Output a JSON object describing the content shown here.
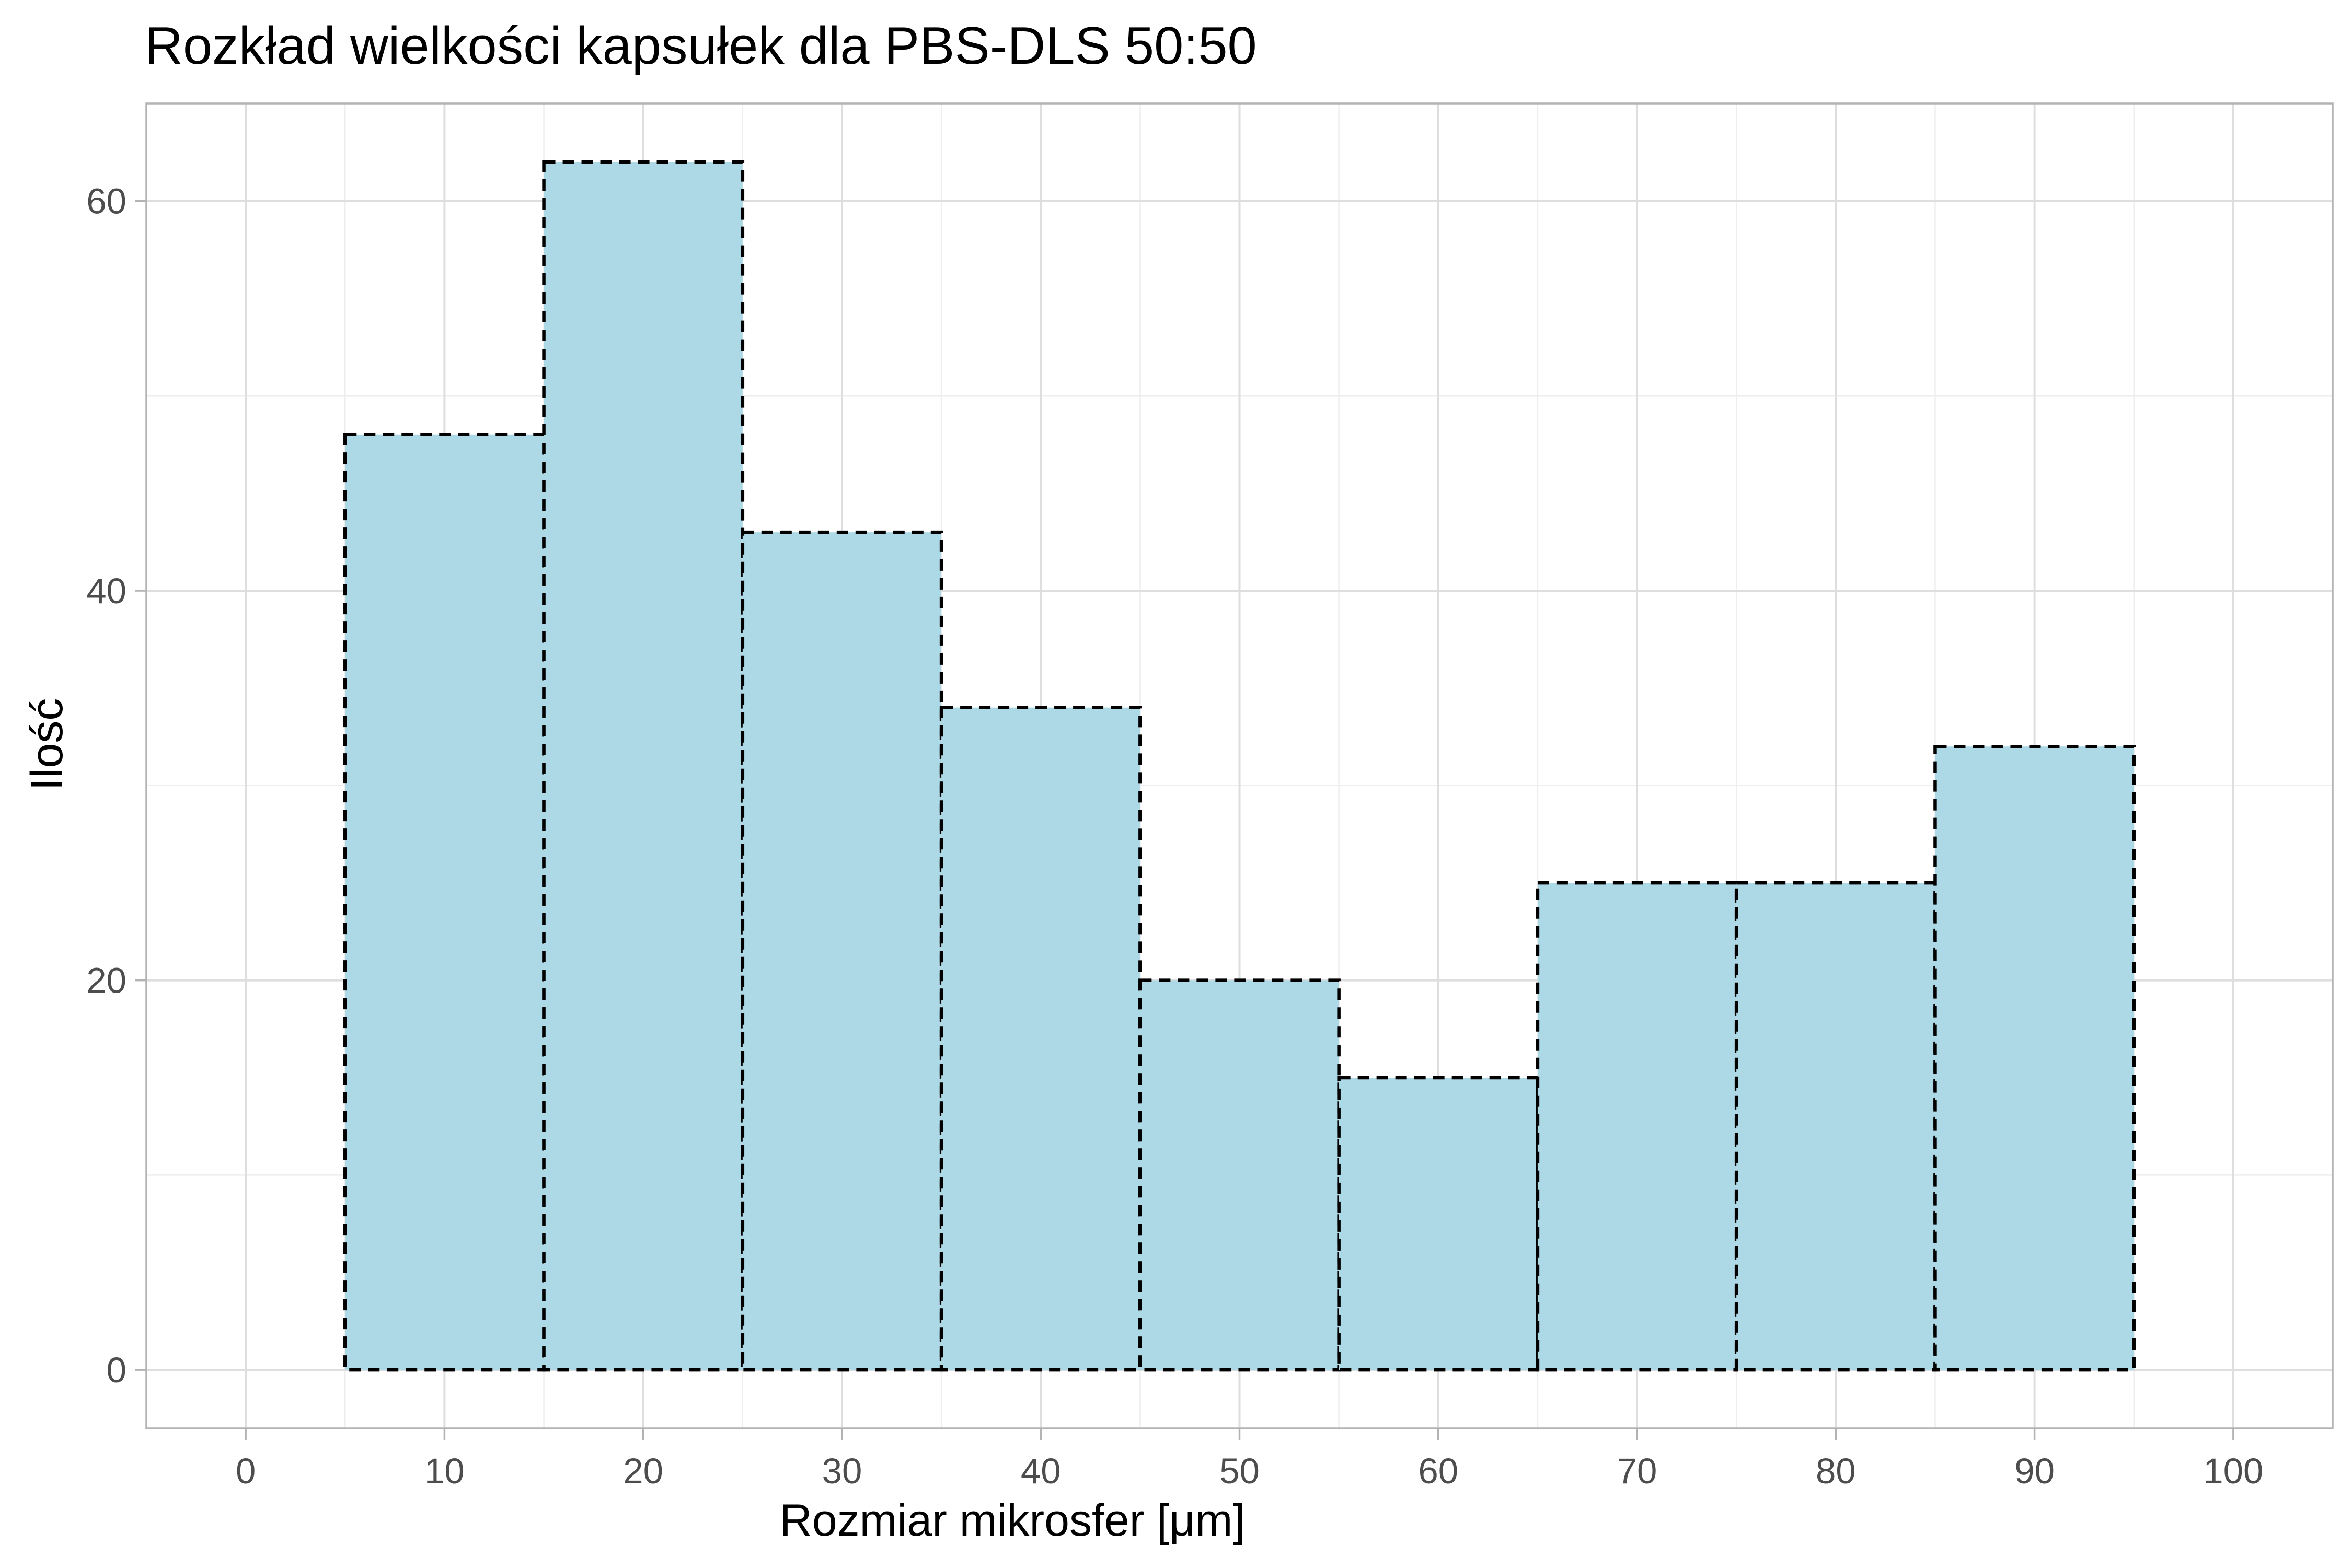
{
  "chart_data": {
    "type": "bar",
    "title": "Rozkład wielkości kapsułek dla PBS-DLS 50:50",
    "xlabel": "Rozmiar mikrosfer [μm]",
    "ylabel": "Ilość",
    "bins": [
      {
        "start": 5,
        "end": 15,
        "count": 48
      },
      {
        "start": 15,
        "end": 25,
        "count": 62
      },
      {
        "start": 25,
        "end": 35,
        "count": 43
      },
      {
        "start": 35,
        "end": 45,
        "count": 34
      },
      {
        "start": 45,
        "end": 55,
        "count": 20
      },
      {
        "start": 55,
        "end": 65,
        "count": 15
      },
      {
        "start": 65,
        "end": 75,
        "count": 25
      },
      {
        "start": 75,
        "end": 85,
        "count": 25
      },
      {
        "start": 85,
        "end": 95,
        "count": 32
      }
    ],
    "xlim": [
      -5,
      105
    ],
    "ylim": [
      -3,
      65
    ],
    "xticks": [
      0,
      10,
      20,
      30,
      40,
      50,
      60,
      70,
      80,
      90,
      100
    ],
    "yticks": [
      0,
      20,
      40,
      60
    ],
    "xtick_labels": [
      "0",
      "10",
      "20",
      "30",
      "40",
      "50",
      "60",
      "70",
      "80",
      "90",
      "100"
    ],
    "ytick_labels": [
      "0",
      "20",
      "40",
      "60"
    ],
    "grid": true,
    "legend": "none",
    "colors": {
      "bar_fill": "#add8e6",
      "bar_outline": "#000000",
      "grid_major": "#dedede",
      "grid_minor": "#eeeeee",
      "panel_border": "#b3b3b3"
    }
  }
}
